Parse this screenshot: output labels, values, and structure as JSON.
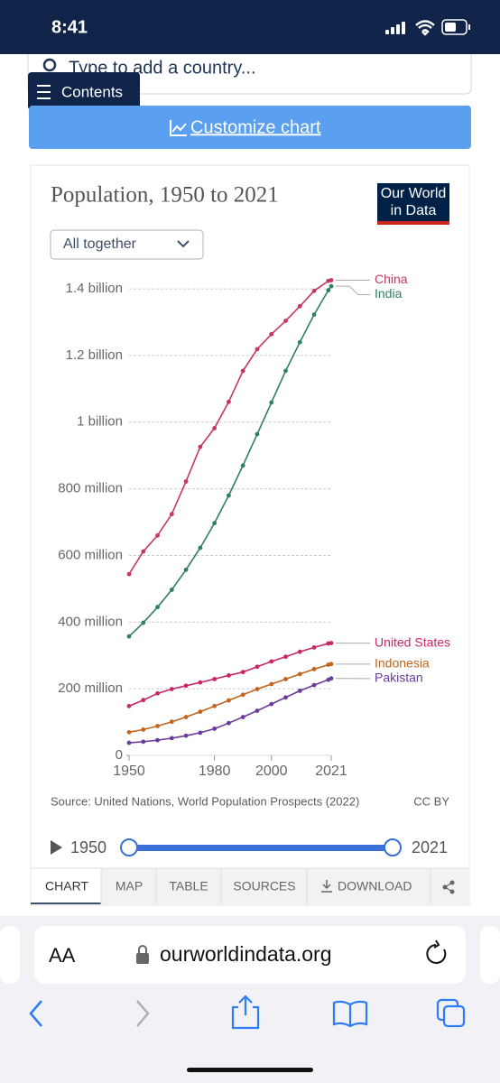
{
  "ui": {
    "status": {
      "time": "8:41"
    },
    "search": {
      "placeholder": "Type to add a country..."
    },
    "contents_button": "Contents",
    "customize_button": "Customize chart",
    "logo": [
      "Our World",
      "in Data"
    ],
    "selector": "All together",
    "timeline": {
      "start": "1950",
      "end": "2021"
    },
    "tabs": [
      "CHART",
      "MAP",
      "TABLE",
      "SOURCES",
      "DOWNLOAD"
    ],
    "browser": {
      "text_size": "AA",
      "url": "ourworldindata.org"
    }
  },
  "chart_data": {
    "type": "line",
    "title": "Population, 1950 to 2021",
    "source": "Source: United Nations, World Population Prospects (2022)",
    "license": "CC BY",
    "x": [
      1950,
      1955,
      1960,
      1965,
      1970,
      1975,
      1980,
      1985,
      1990,
      1995,
      2000,
      2005,
      2010,
      2015,
      2020,
      2021
    ],
    "xlim": [
      1950,
      2021
    ],
    "xticks": [
      1950,
      1980,
      2000,
      2021
    ],
    "ylim": [
      0,
      1430000000
    ],
    "yticks": [
      0,
      {
        "value": 200000000,
        "label": "200 million"
      },
      {
        "value": 400000000,
        "label": "400 million"
      },
      {
        "value": 600000000,
        "label": "600 million"
      },
      {
        "value": 800000000,
        "label": "800 million"
      },
      {
        "value": 1000000000,
        "label": "1 billion"
      },
      {
        "value": 1200000000,
        "label": "1.2 billion"
      },
      {
        "value": 1400000000,
        "label": "1.4 billion"
      }
    ],
    "grid": true,
    "series": [
      {
        "name": "China",
        "color": "#c4385e",
        "values": [
          544000000,
          612000000,
          660000000,
          724000000,
          822000000,
          926000000,
          982000000,
          1061000000,
          1154000000,
          1219000000,
          1264000000,
          1304000000,
          1348000000,
          1394000000,
          1424000000,
          1426000000
        ]
      },
      {
        "name": "India",
        "color": "#2f8061",
        "values": [
          357000000,
          398000000,
          445000000,
          497000000,
          557000000,
          623000000,
          697000000,
          780000000,
          870000000,
          964000000,
          1059000000,
          1154000000,
          1240000000,
          1323000000,
          1396000000,
          1408000000
        ]
      },
      {
        "name": "United States",
        "color": "#c8266a",
        "values": [
          148000000,
          166000000,
          186000000,
          199000000,
          209000000,
          219000000,
          229000000,
          240000000,
          250000000,
          266000000,
          282000000,
          296000000,
          311000000,
          324000000,
          336000000,
          337000000
        ]
      },
      {
        "name": "Indonesia",
        "color": "#c0651f",
        "values": [
          69500000,
          77500000,
          88000000,
          101000000,
          115000000,
          131000000,
          148000000,
          165000000,
          182000000,
          199000000,
          214000000,
          229000000,
          244000000,
          259000000,
          272000000,
          274000000
        ]
      },
      {
        "name": "Pakistan",
        "color": "#6a3c99",
        "values": [
          37700000,
          41000000,
          45700000,
          51700000,
          59000000,
          68000000,
          80000000,
          97000000,
          115000000,
          134000000,
          154000000,
          174000000,
          194000000,
          211000000,
          227000000,
          231000000
        ]
      }
    ]
  }
}
